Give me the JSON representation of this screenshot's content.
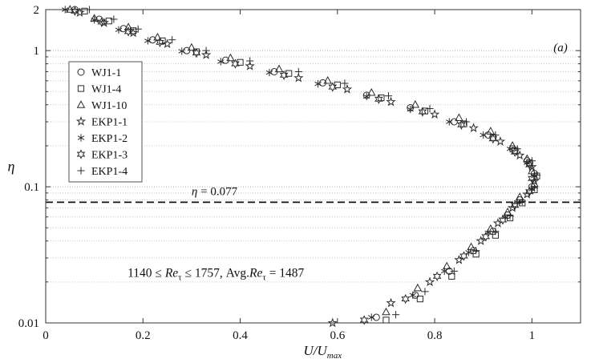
{
  "annotations": {
    "eta_line": {
      "value": 0.077,
      "label": "η = 0.077",
      "label_parts": [
        {
          "t": "η",
          "style": "i"
        },
        {
          "t": " = 0.077",
          "style": "n"
        }
      ],
      "label_x": 0.3
    },
    "re_range": {
      "label": "1140 ≤ Re_τ ≤ 1757, Avg.Re_τ = 1487",
      "parts": [
        {
          "t": "1140 ≤ ",
          "style": "n"
        },
        {
          "t": "Re",
          "style": "i"
        },
        {
          "t": "τ",
          "style": "sub"
        },
        {
          "t": " ≤ 1757, Avg.",
          "style": "n"
        },
        {
          "t": "Re",
          "style": "i"
        },
        {
          "t": "τ",
          "style": "sub"
        },
        {
          "t": " = 1487",
          "style": "n"
        }
      ],
      "x": 0.35,
      "y": 0.023
    },
    "panel_label": {
      "label": "(a)",
      "parts": [
        {
          "t": "(a)",
          "style": "i"
        }
      ]
    }
  },
  "colors": {
    "marker": "#2b2b2b",
    "grid_minor": "#c9c9c9",
    "grid_major": "#b2b2b2",
    "axis": "#333333",
    "dashed_line": "#111111",
    "text": "#111111",
    "legend_border": "#555555"
  },
  "chart_data": {
    "type": "scatter",
    "title": "",
    "xlabel": {
      "text": "U/U_max",
      "parts": [
        {
          "t": "U/U",
          "style": "i"
        },
        {
          "t": "max",
          "style": "subi"
        }
      ]
    },
    "ylabel": {
      "text": "η",
      "style": "i"
    },
    "xlim": [
      0,
      1.1
    ],
    "ylim": [
      0.01,
      2
    ],
    "y_scale": "log",
    "x_ticks": [
      {
        "v": 0,
        "l": "0"
      },
      {
        "v": 0.2,
        "l": "0.2"
      },
      {
        "v": 0.4,
        "l": "0.4"
      },
      {
        "v": 0.6,
        "l": "0.6"
      },
      {
        "v": 0.8,
        "l": "0.8"
      },
      {
        "v": 1,
        "l": "1"
      }
    ],
    "y_ticks": [
      {
        "v": 2,
        "l": "2"
      },
      {
        "v": 1,
        "l": "1"
      },
      {
        "v": 0.1,
        "l": "0.1"
      },
      {
        "v": 0.01,
        "l": "0.01"
      }
    ],
    "grid": "horizontal-dotted-log-minors",
    "legend_position": "upper-left",
    "point_format": "[U_over_Umax, eta]",
    "series": [
      {
        "name": "WJ1-1",
        "marker": "circle",
        "points": [
          [
            0.06,
            2.0
          ],
          [
            0.11,
            1.7
          ],
          [
            0.16,
            1.45
          ],
          [
            0.22,
            1.2
          ],
          [
            0.29,
            1.0
          ],
          [
            0.37,
            0.85
          ],
          [
            0.47,
            0.7
          ],
          [
            0.57,
            0.58
          ],
          [
            0.66,
            0.47
          ],
          [
            0.75,
            0.38
          ],
          [
            0.84,
            0.3
          ],
          [
            0.91,
            0.24
          ],
          [
            0.96,
            0.19
          ],
          [
            0.99,
            0.155
          ],
          [
            1.005,
            0.125
          ],
          [
            1.0,
            0.1
          ],
          [
            0.975,
            0.08
          ],
          [
            0.95,
            0.062
          ],
          [
            0.92,
            0.047
          ],
          [
            0.88,
            0.034
          ],
          [
            0.83,
            0.024
          ],
          [
            0.76,
            0.016
          ],
          [
            0.68,
            0.011
          ]
        ]
      },
      {
        "name": "WJ1-4",
        "marker": "square",
        "points": [
          [
            0.08,
            1.95
          ],
          [
            0.13,
            1.65
          ],
          [
            0.18,
            1.4
          ],
          [
            0.24,
            1.18
          ],
          [
            0.31,
            0.98
          ],
          [
            0.4,
            0.82
          ],
          [
            0.5,
            0.68
          ],
          [
            0.6,
            0.56
          ],
          [
            0.69,
            0.45
          ],
          [
            0.78,
            0.36
          ],
          [
            0.86,
            0.29
          ],
          [
            0.92,
            0.23
          ],
          [
            0.965,
            0.185
          ],
          [
            0.995,
            0.15
          ],
          [
            1.01,
            0.12
          ],
          [
            1.005,
            0.095
          ],
          [
            0.98,
            0.076
          ],
          [
            0.955,
            0.059
          ],
          [
            0.925,
            0.044
          ],
          [
            0.885,
            0.032
          ],
          [
            0.835,
            0.022
          ],
          [
            0.77,
            0.015
          ],
          [
            0.7,
            0.0105
          ]
        ]
      },
      {
        "name": "WJ1-10",
        "marker": "triangle",
        "points": [
          [
            0.05,
            2.0
          ],
          [
            0.1,
            1.72
          ],
          [
            0.17,
            1.48
          ],
          [
            0.23,
            1.25
          ],
          [
            0.3,
            1.05
          ],
          [
            0.38,
            0.88
          ],
          [
            0.48,
            0.73
          ],
          [
            0.58,
            0.6
          ],
          [
            0.67,
            0.49
          ],
          [
            0.76,
            0.4
          ],
          [
            0.85,
            0.32
          ],
          [
            0.915,
            0.255
          ],
          [
            0.96,
            0.2
          ],
          [
            0.99,
            0.16
          ],
          [
            1.0,
            0.13
          ],
          [
            1.005,
            0.105
          ],
          [
            0.975,
            0.084
          ],
          [
            0.95,
            0.065
          ],
          [
            0.915,
            0.049
          ],
          [
            0.875,
            0.036
          ],
          [
            0.825,
            0.026
          ],
          [
            0.765,
            0.018
          ],
          [
            0.7,
            0.012
          ]
        ]
      },
      {
        "name": "EKP1-1",
        "marker": "star5",
        "points": [
          [
            0.07,
            1.9
          ],
          [
            0.12,
            1.6
          ],
          [
            0.18,
            1.35
          ],
          [
            0.25,
            1.12
          ],
          [
            0.33,
            0.93
          ],
          [
            0.42,
            0.77
          ],
          [
            0.52,
            0.63
          ],
          [
            0.62,
            0.52
          ],
          [
            0.71,
            0.42
          ],
          [
            0.8,
            0.34
          ],
          [
            0.88,
            0.27
          ],
          [
            0.935,
            0.215
          ],
          [
            0.975,
            0.17
          ],
          [
            1.0,
            0.14
          ],
          [
            1.005,
            0.11
          ],
          [
            0.99,
            0.088
          ],
          [
            0.96,
            0.07
          ],
          [
            0.93,
            0.054
          ],
          [
            0.895,
            0.04
          ],
          [
            0.85,
            0.029
          ],
          [
            0.79,
            0.02
          ],
          [
            0.71,
            0.014
          ],
          [
            0.59,
            0.01
          ]
        ]
      },
      {
        "name": "EKP1-2",
        "marker": "asterisk",
        "points": [
          [
            0.04,
            2.0
          ],
          [
            0.1,
            1.68
          ],
          [
            0.15,
            1.42
          ],
          [
            0.21,
            1.18
          ],
          [
            0.28,
            0.99
          ],
          [
            0.36,
            0.83
          ],
          [
            0.46,
            0.69
          ],
          [
            0.56,
            0.57
          ],
          [
            0.66,
            0.46
          ],
          [
            0.75,
            0.37
          ],
          [
            0.83,
            0.3
          ],
          [
            0.9,
            0.24
          ],
          [
            0.955,
            0.19
          ],
          [
            0.99,
            0.15
          ],
          [
            1.005,
            0.12
          ],
          [
            1.0,
            0.096
          ],
          [
            0.97,
            0.077
          ],
          [
            0.945,
            0.06
          ],
          [
            0.91,
            0.046
          ],
          [
            0.87,
            0.033
          ],
          [
            0.82,
            0.024
          ],
          [
            0.755,
            0.016
          ],
          [
            0.67,
            0.011
          ]
        ]
      },
      {
        "name": "EKP1-3",
        "marker": "star6",
        "points": [
          [
            0.06,
            1.95
          ],
          [
            0.115,
            1.62
          ],
          [
            0.17,
            1.38
          ],
          [
            0.235,
            1.15
          ],
          [
            0.31,
            0.96
          ],
          [
            0.39,
            0.8
          ],
          [
            0.49,
            0.66
          ],
          [
            0.59,
            0.54
          ],
          [
            0.685,
            0.44
          ],
          [
            0.775,
            0.355
          ],
          [
            0.855,
            0.285
          ],
          [
            0.92,
            0.225
          ],
          [
            0.965,
            0.18
          ],
          [
            0.995,
            0.145
          ],
          [
            1.0,
            0.115
          ],
          [
            0.995,
            0.092
          ],
          [
            0.965,
            0.073
          ],
          [
            0.94,
            0.057
          ],
          [
            0.905,
            0.043
          ],
          [
            0.86,
            0.031
          ],
          [
            0.805,
            0.022
          ],
          [
            0.74,
            0.015
          ],
          [
            0.655,
            0.0105
          ]
        ]
      },
      {
        "name": "EKP1-4",
        "marker": "plus",
        "points": [
          [
            0.09,
            2.0
          ],
          [
            0.14,
            1.7
          ],
          [
            0.19,
            1.44
          ],
          [
            0.26,
            1.2
          ],
          [
            0.33,
            1.0
          ],
          [
            0.42,
            0.84
          ],
          [
            0.52,
            0.7
          ],
          [
            0.615,
            0.575
          ],
          [
            0.705,
            0.465
          ],
          [
            0.79,
            0.375
          ],
          [
            0.865,
            0.3
          ],
          [
            0.925,
            0.24
          ],
          [
            0.97,
            0.19
          ],
          [
            1.0,
            0.155
          ],
          [
            1.01,
            0.122
          ],
          [
            1.005,
            0.098
          ],
          [
            0.98,
            0.078
          ],
          [
            0.955,
            0.061
          ],
          [
            0.925,
            0.047
          ],
          [
            0.885,
            0.034
          ],
          [
            0.84,
            0.024
          ],
          [
            0.78,
            0.017
          ],
          [
            0.72,
            0.0115
          ]
        ]
      }
    ]
  }
}
